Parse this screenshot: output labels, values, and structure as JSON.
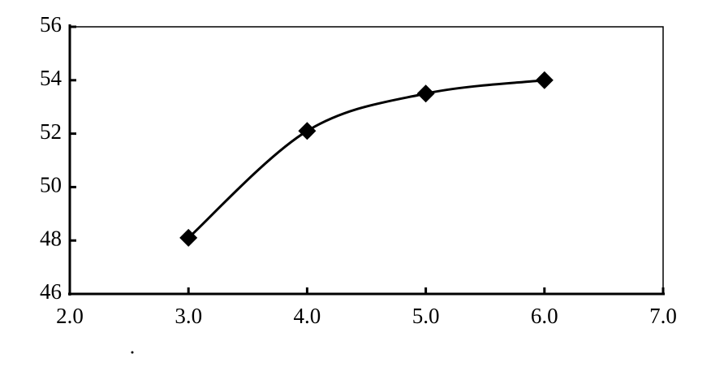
{
  "chart_data": {
    "type": "line",
    "x": [
      3.0,
      4.0,
      5.0,
      6.0
    ],
    "series": [
      {
        "color": "#000000",
        "values": [
          48.1,
          52.1,
          53.5,
          54.0
        ]
      }
    ],
    "xlim": [
      2.0,
      7.0
    ],
    "xticks": [
      {
        "value": 2,
        "label": "2.0"
      },
      {
        "value": 3,
        "label": "3.0"
      },
      {
        "value": 4,
        "label": "4.0"
      },
      {
        "value": 5,
        "label": "5.0"
      },
      {
        "value": 6,
        "label": "6.0"
      },
      {
        "value": 7,
        "label": "7.0"
      }
    ],
    "ylim": [
      46,
      56
    ],
    "yticks": [
      46,
      48,
      50,
      52,
      54,
      56
    ],
    "grid": false
  }
}
